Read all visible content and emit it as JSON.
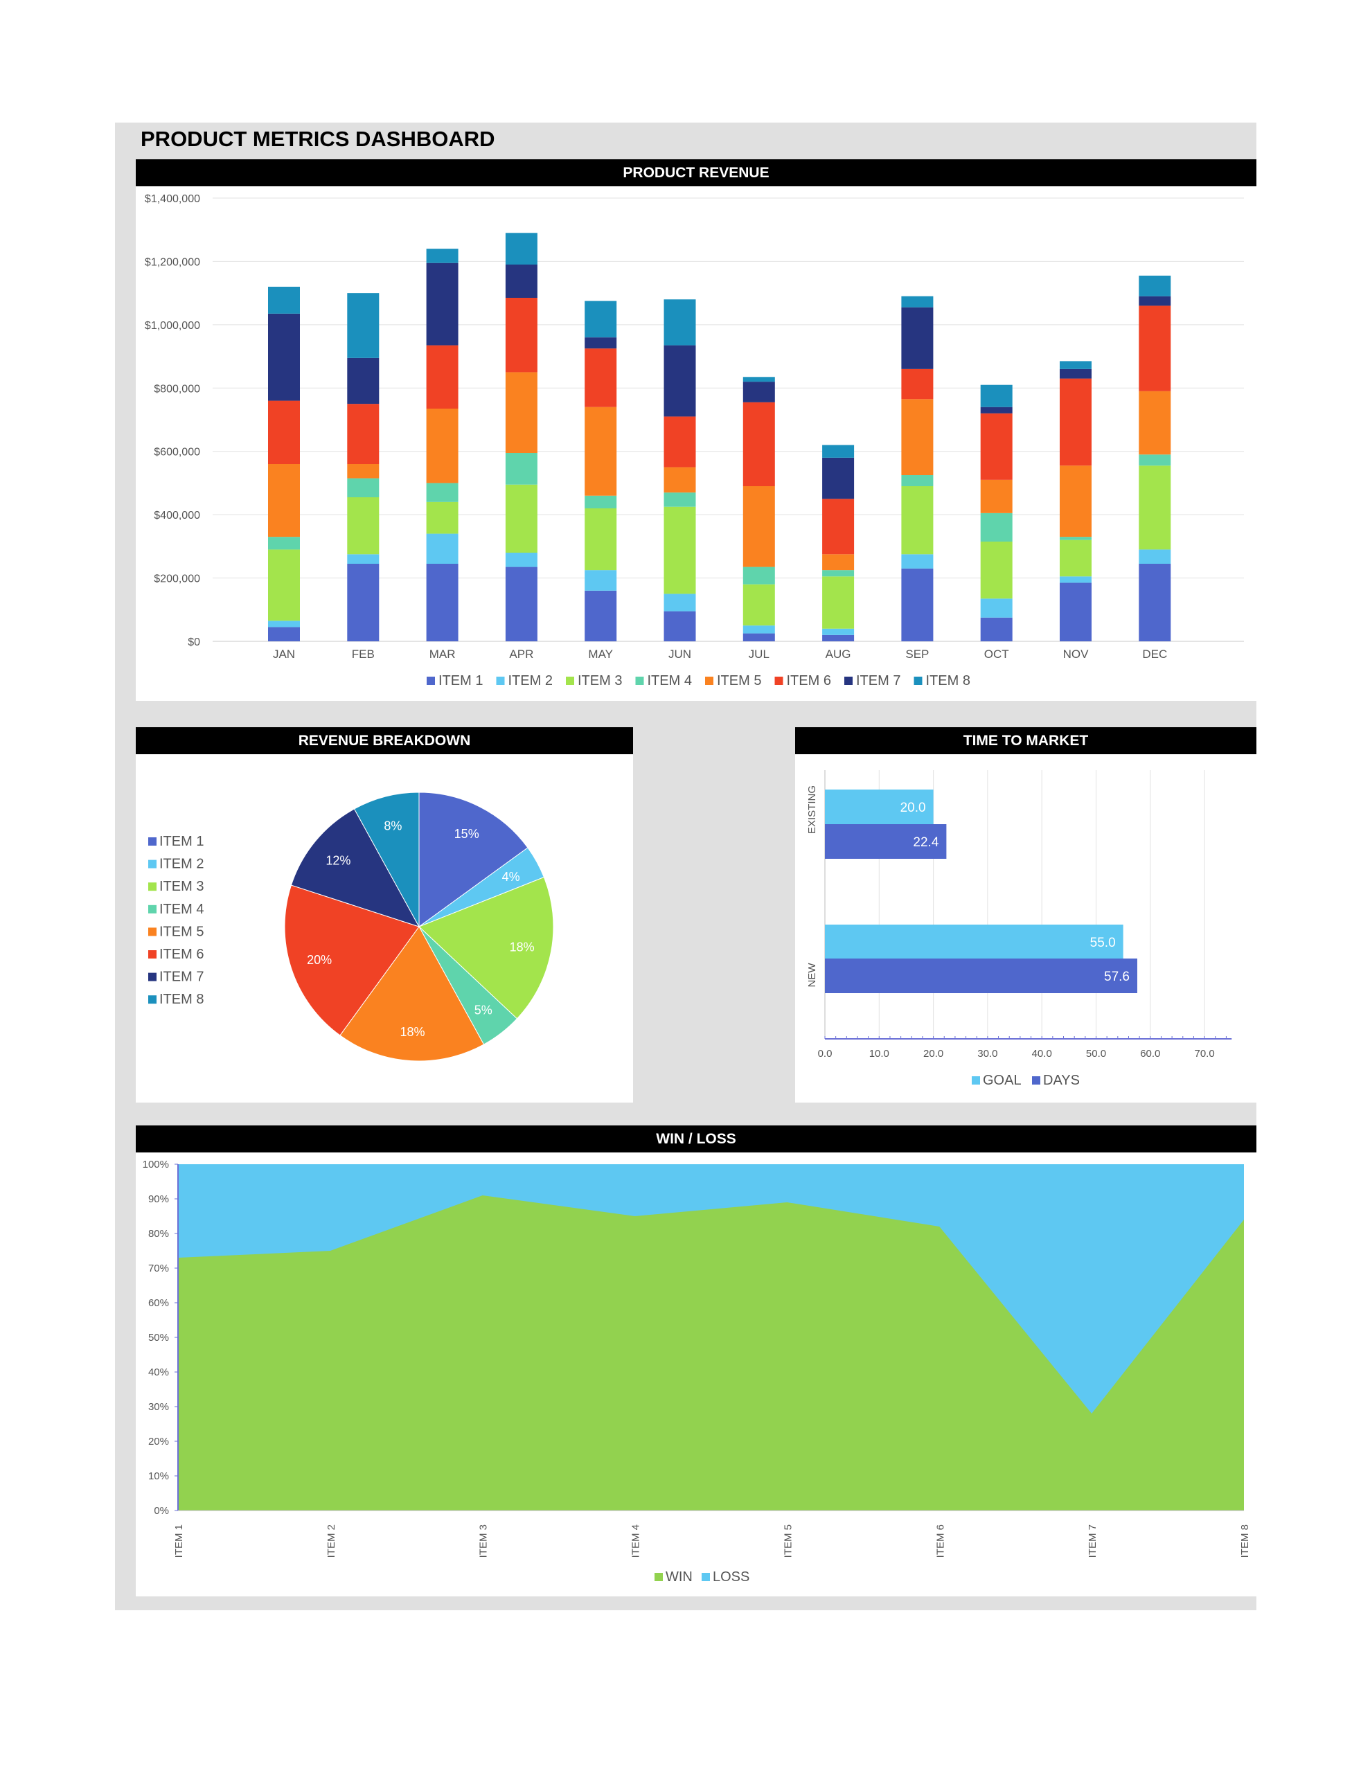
{
  "dashboard": {
    "title": "PRODUCT METRICS DASHBOARD"
  },
  "colors": {
    "item1": "#4f67cc",
    "item2": "#5ec8f2",
    "item3": "#a3e44c",
    "item4": "#5fd4ac",
    "item5": "#fa8220",
    "item6": "#f04225",
    "item7": "#263580",
    "item8": "#1b90bd",
    "win": "#92d24f",
    "loss": "#5ec8f2",
    "goal": "#5ec8f2",
    "days": "#4f67cc"
  },
  "chart_data": [
    {
      "id": "revenue",
      "type": "bar",
      "stacked": true,
      "title": "PRODUCT REVENUE",
      "categories": [
        "JAN",
        "FEB",
        "MAR",
        "APR",
        "MAY",
        "JUN",
        "JUL",
        "AUG",
        "SEP",
        "OCT",
        "NOV",
        "DEC"
      ],
      "ylim": [
        0,
        1400000
      ],
      "yticks": [
        "$0",
        "$200,000",
        "$400,000",
        "$600,000",
        "$800,000",
        "$1,000,000",
        "$1,200,000",
        "$1,400,000"
      ],
      "grid": true,
      "legend_position": "bottom",
      "series": [
        {
          "name": "ITEM 1",
          "color": "#4f67cc",
          "values": [
            45000,
            245000,
            245000,
            235000,
            160000,
            95000,
            25000,
            20000,
            230000,
            75000,
            185000,
            245000
          ]
        },
        {
          "name": "ITEM 2",
          "color": "#5ec8f2",
          "values": [
            20000,
            30000,
            95000,
            45000,
            65000,
            55000,
            25000,
            20000,
            45000,
            60000,
            20000,
            45000
          ]
        },
        {
          "name": "ITEM 3",
          "color": "#a3e44c",
          "values": [
            225000,
            180000,
            100000,
            215000,
            195000,
            275000,
            130000,
            165000,
            215000,
            180000,
            115000,
            265000
          ]
        },
        {
          "name": "ITEM 4",
          "color": "#5fd4ac",
          "values": [
            40000,
            60000,
            60000,
            100000,
            40000,
            45000,
            55000,
            20000,
            35000,
            90000,
            10000,
            35000
          ]
        },
        {
          "name": "ITEM 5",
          "color": "#fa8220",
          "values": [
            230000,
            45000,
            235000,
            255000,
            280000,
            80000,
            255000,
            50000,
            240000,
            105000,
            225000,
            200000
          ]
        },
        {
          "name": "ITEM 6",
          "color": "#f04225",
          "values": [
            200000,
            190000,
            200000,
            235000,
            185000,
            160000,
            265000,
            175000,
            95000,
            210000,
            275000,
            270000
          ]
        },
        {
          "name": "ITEM 7",
          "color": "#263580",
          "values": [
            275000,
            145000,
            260000,
            105000,
            35000,
            225000,
            65000,
            130000,
            195000,
            20000,
            30000,
            30000
          ]
        },
        {
          "name": "ITEM 8",
          "color": "#1b90bd",
          "values": [
            85000,
            205000,
            45000,
            100000,
            115000,
            145000,
            15000,
            40000,
            35000,
            70000,
            25000,
            65000
          ]
        }
      ]
    },
    {
      "id": "breakdown",
      "type": "pie",
      "title": "REVENUE BREAKDOWN",
      "legend_position": "left",
      "labels": [
        "ITEM 1",
        "ITEM 2",
        "ITEM 3",
        "ITEM 4",
        "ITEM 5",
        "ITEM 6",
        "ITEM 7",
        "ITEM 8"
      ],
      "values": [
        15,
        4,
        18,
        5,
        18,
        20,
        12,
        8
      ],
      "value_labels": [
        "15%",
        "4%",
        "18%",
        "5%",
        "18%",
        "20%",
        "12%",
        "8%"
      ],
      "colors": [
        "#4f67cc",
        "#5ec8f2",
        "#a3e44c",
        "#5fd4ac",
        "#fa8220",
        "#f04225",
        "#263580",
        "#1b90bd"
      ]
    },
    {
      "id": "ttm",
      "type": "bar",
      "orientation": "horizontal",
      "title": "TIME TO MARKET",
      "categories": [
        "EXISTING",
        "NEW"
      ],
      "xlim": [
        0,
        75
      ],
      "xticks": [
        "0.0",
        "10.0",
        "20.0",
        "30.0",
        "40.0",
        "50.0",
        "60.0",
        "70.0"
      ],
      "grid": true,
      "legend_position": "bottom",
      "series": [
        {
          "name": "GOAL",
          "color": "#5ec8f2",
          "values": [
            20.0,
            55.0
          ],
          "labels": [
            "20.0",
            "55.0"
          ]
        },
        {
          "name": "DAYS",
          "color": "#4f67cc",
          "values": [
            22.4,
            57.6
          ],
          "labels": [
            "22.4",
            "57.6"
          ]
        }
      ]
    },
    {
      "id": "winloss",
      "type": "area",
      "stacked": true,
      "title": "WIN / LOSS",
      "categories": [
        "ITEM 1",
        "ITEM 2",
        "ITEM 3",
        "ITEM 4",
        "ITEM 5",
        "ITEM 6",
        "ITEM 7",
        "ITEM 8"
      ],
      "ylim": [
        0,
        100
      ],
      "yticks": [
        "0%",
        "10%",
        "20%",
        "30%",
        "40%",
        "50%",
        "60%",
        "70%",
        "80%",
        "90%",
        "100%"
      ],
      "legend_position": "bottom",
      "series": [
        {
          "name": "WIN",
          "color": "#92d24f",
          "values": [
            73,
            75,
            91,
            85,
            89,
            82,
            28,
            84
          ]
        },
        {
          "name": "LOSS",
          "color": "#5ec8f2",
          "values": [
            27,
            25,
            9,
            15,
            11,
            18,
            72,
            16
          ]
        }
      ]
    }
  ]
}
